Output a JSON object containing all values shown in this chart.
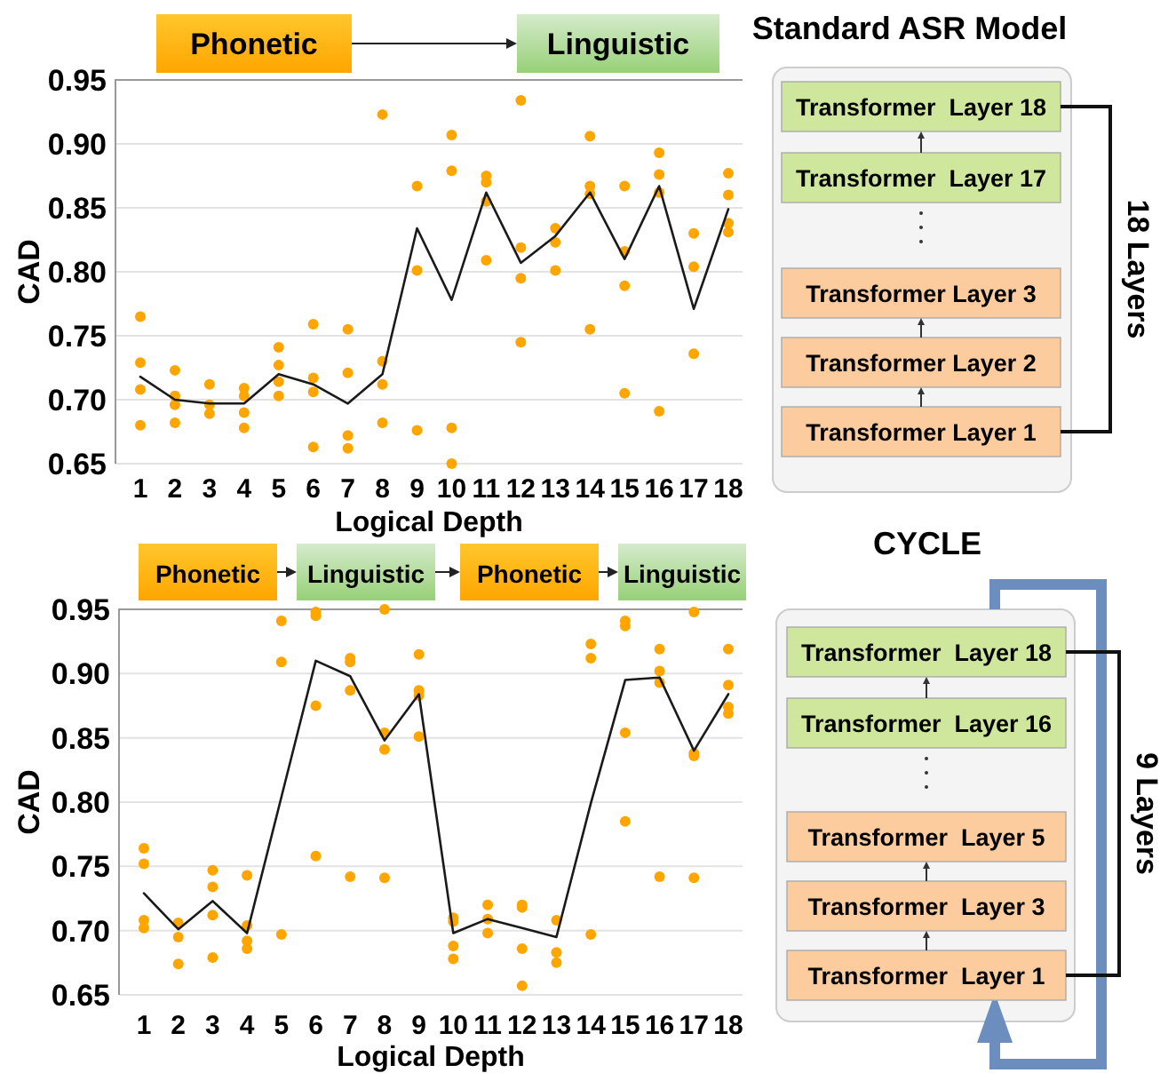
{
  "chart_data": [
    {
      "type": "line",
      "xlabel": "Logical Depth",
      "ylabel": "CAD",
      "annotations": [
        "Phonetic",
        "Linguistic"
      ],
      "categories": [
        "1",
        "2",
        "3",
        "4",
        "5",
        "6",
        "7",
        "8",
        "9",
        "10",
        "11",
        "12",
        "13",
        "14",
        "15",
        "16",
        "17",
        "18"
      ],
      "ylim": [
        0.65,
        0.95
      ],
      "yticks": [
        {
          "value": 0.65,
          "label": "0.65"
        },
        {
          "value": 0.7,
          "label": "0.70"
        },
        {
          "value": 0.75,
          "label": "0.75"
        },
        {
          "value": 0.8,
          "label": "0.80"
        },
        {
          "value": 0.85,
          "label": "0.85"
        },
        {
          "value": 0.9,
          "label": "0.90"
        },
        {
          "value": 0.95,
          "label": "0.95"
        }
      ],
      "grid": "y",
      "series": [
        {
          "type": "scatter",
          "color": "#ffa500",
          "marker": "circle",
          "x": [
            "1",
            "1",
            "1",
            "1",
            "2",
            "2",
            "2",
            "2",
            "3",
            "3",
            "3",
            "4",
            "4",
            "4",
            "4",
            "5",
            "5",
            "5",
            "5",
            "6",
            "6",
            "6",
            "6",
            "7",
            "7",
            "7",
            "7",
            "8",
            "8",
            "8",
            "8",
            "9",
            "9",
            "9",
            "10",
            "10",
            "10",
            "10",
            "11",
            "11",
            "11",
            "11",
            "12",
            "12",
            "12",
            "12",
            "13",
            "13",
            "13",
            "14",
            "14",
            "14",
            "14",
            "15",
            "15",
            "15",
            "15",
            "16",
            "16",
            "16",
            "16",
            "17",
            "17",
            "17",
            "18",
            "18",
            "18",
            "18"
          ],
          "values": [
            0.765,
            0.729,
            0.708,
            0.68,
            0.723,
            0.703,
            0.696,
            0.682,
            0.712,
            0.696,
            0.689,
            0.709,
            0.703,
            0.69,
            0.678,
            0.741,
            0.727,
            0.714,
            0.703,
            0.759,
            0.717,
            0.706,
            0.663,
            0.755,
            0.721,
            0.672,
            0.662,
            0.923,
            0.73,
            0.712,
            0.682,
            0.867,
            0.801,
            0.676,
            0.907,
            0.879,
            0.678,
            0.65,
            0.875,
            0.87,
            0.855,
            0.809,
            0.934,
            0.819,
            0.795,
            0.745,
            0.834,
            0.823,
            0.801,
            0.906,
            0.867,
            0.861,
            0.755,
            0.867,
            0.816,
            0.789,
            0.705,
            0.893,
            0.876,
            0.862,
            0.691,
            0.83,
            0.804,
            0.736,
            0.877,
            0.86,
            0.838,
            0.831
          ]
        },
        {
          "type": "line",
          "color": "#1a1a1a",
          "values": [
            0.718,
            0.7,
            0.697,
            0.697,
            0.72,
            0.712,
            0.697,
            0.72,
            0.834,
            0.778,
            0.862,
            0.807,
            0.828,
            0.862,
            0.81,
            0.867,
            0.771,
            0.849
          ]
        }
      ]
    },
    {
      "type": "other",
      "title": "Standard ASR Model",
      "categories": [
        "Transformer  Layer 18",
        "Transformer  Layer 17",
        null,
        "Transformer Layer 3",
        "Transformer Layer 2",
        "Transformer Layer 1"
      ],
      "colors": [
        "#cfe79c",
        "#cfe79c",
        null,
        "#fdcc9e",
        "#fdcc9e",
        "#fdcc9e"
      ],
      "annotations": [
        "18 Layers"
      ]
    },
    {
      "type": "line",
      "xlabel": "Logical Depth",
      "ylabel": "CAD",
      "annotations": [
        "Phonetic",
        "Linguistic",
        "Phonetic",
        "Linguistic"
      ],
      "categories": [
        "1",
        "2",
        "3",
        "4",
        "5",
        "6",
        "7",
        "8",
        "9",
        "10",
        "11",
        "12",
        "13",
        "14",
        "15",
        "16",
        "17",
        "18"
      ],
      "ylim": [
        0.65,
        0.95
      ],
      "yticks": [
        {
          "value": 0.65,
          "label": "0.65"
        },
        {
          "value": 0.7,
          "label": "0.70"
        },
        {
          "value": 0.75,
          "label": "0.75"
        },
        {
          "value": 0.8,
          "label": "0.80"
        },
        {
          "value": 0.85,
          "label": "0.85"
        },
        {
          "value": 0.9,
          "label": "0.90"
        },
        {
          "value": 0.95,
          "label": "0.95"
        }
      ],
      "grid": "y",
      "series": [
        {
          "type": "scatter",
          "color": "#ffa500",
          "marker": "circle",
          "x": [
            "1",
            "1",
            "1",
            "1",
            "2",
            "2",
            "2",
            "3",
            "3",
            "3",
            "3",
            "4",
            "4",
            "4",
            "4",
            "5",
            "5",
            "5",
            "6",
            "6",
            "6",
            "6",
            "7",
            "7",
            "7",
            "7",
            "8",
            "8",
            "8",
            "8",
            "9",
            "9",
            "9",
            "9",
            "10",
            "10",
            "10",
            "10",
            "11",
            "11",
            "11",
            "12",
            "12",
            "12",
            "12",
            "13",
            "13",
            "13",
            "14",
            "14",
            "14",
            "15",
            "15",
            "15",
            "15",
            "16",
            "16",
            "16",
            "16",
            "17",
            "17",
            "17",
            "17",
            "18",
            "18",
            "18",
            "18"
          ],
          "values": [
            0.764,
            0.752,
            0.708,
            0.702,
            0.706,
            0.695,
            0.674,
            0.747,
            0.734,
            0.712,
            0.679,
            0.743,
            0.704,
            0.692,
            0.686,
            0.941,
            0.909,
            0.697,
            0.948,
            0.945,
            0.875,
            0.758,
            0.912,
            0.909,
            0.887,
            0.742,
            0.95,
            0.854,
            0.841,
            0.741,
            0.915,
            0.887,
            0.883,
            0.851,
            0.71,
            0.707,
            0.688,
            0.678,
            0.72,
            0.709,
            0.698,
            0.72,
            0.718,
            0.686,
            0.657,
            0.708,
            0.683,
            0.675,
            0.923,
            0.912,
            0.697,
            0.941,
            0.937,
            0.854,
            0.785,
            0.919,
            0.902,
            0.893,
            0.742,
            0.948,
            0.838,
            0.836,
            0.741,
            0.919,
            0.891,
            0.874,
            0.869
          ]
        },
        {
          "type": "line",
          "color": "#1a1a1a",
          "values": [
            0.729,
            0.701,
            0.723,
            0.698,
            0.804,
            0.91,
            0.898,
            0.848,
            0.884,
            0.698,
            0.709,
            0.702,
            0.695,
            0.799,
            0.895,
            0.897,
            0.84,
            0.884
          ]
        }
      ]
    },
    {
      "type": "other",
      "title": "CYCLE",
      "categories": [
        "Transformer  Layer 18",
        "Transformer  Layer 16",
        null,
        "Transformer  Layer 5",
        "Transformer  Layer 3",
        "Transformer  Layer 1"
      ],
      "colors": [
        "#cfe79c",
        "#cfe79c",
        null,
        "#fdcc9e",
        "#fdcc9e",
        "#fdcc9e"
      ],
      "annotations": [
        "9 Layers"
      ]
    }
  ]
}
